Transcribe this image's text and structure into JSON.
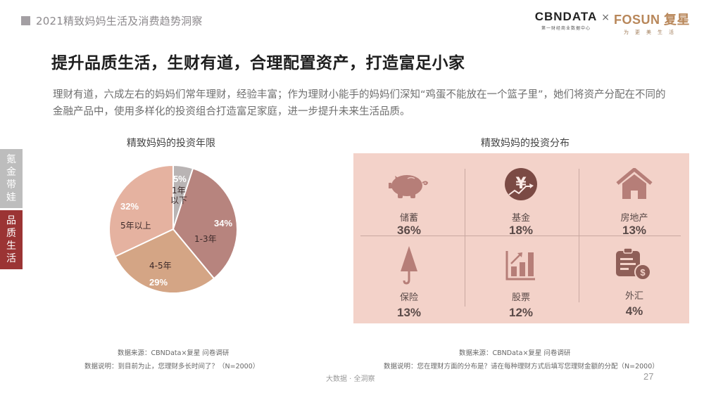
{
  "header": {
    "report_title": "2021精致妈妈生活及消费趋势洞察",
    "logo_cbn": "CBNDATA",
    "logo_cbn_sub": "第一财经商业数据中心",
    "logo_times": "×",
    "logo_fosun": "FOSUN 复星",
    "logo_fosun_sub": "为更美生活"
  },
  "side_tabs": [
    {
      "label": "氪金带娃",
      "active": false
    },
    {
      "label": "品质生活",
      "active": true
    }
  ],
  "main_title": "提升品质生活，生财有道，合理配置资产，打造富足小家",
  "intro_text": "理财有道，六成左右的妈妈们常年理财，经验丰富；作为理财小能手的妈妈们深知“鸡蛋不能放在一个篮子里”，她们将资产分配在不同的金融产品中，使用多样化的投资组合打造富足家庭，进一步提升未来生活品质。",
  "pie_chart": {
    "title": "精致妈妈的投资年限",
    "slices": [
      {
        "label": "1年以下",
        "label_line1": "1年",
        "label_line2": "以下",
        "pct": "5%",
        "color": "#b9b4b4"
      },
      {
        "label": "1-3年",
        "pct": "34%",
        "color": "#b7847e"
      },
      {
        "label": "4-5年",
        "pct": "29%",
        "color": "#d4a585"
      },
      {
        "label": "5年以上",
        "pct": "32%",
        "color": "#e5b2a0"
      }
    ],
    "source": "数据来源：CBNData×复星 问卷调研",
    "note": "数据说明：到目前为止，您理财多长时间了？（N=2000）"
  },
  "grid_chart": {
    "title": "精致妈妈的投资分布",
    "items": [
      {
        "label": "储蓄",
        "pct": "36%",
        "icon": "piggy-bank-icon"
      },
      {
        "label": "基金",
        "pct": "18%",
        "icon": "yuan-growth-icon"
      },
      {
        "label": "房地产",
        "pct": "13%",
        "icon": "house-icon"
      },
      {
        "label": "保险",
        "pct": "13%",
        "icon": "umbrella-icon"
      },
      {
        "label": "股票",
        "pct": "12%",
        "icon": "bar-chart-icon"
      },
      {
        "label": "外汇",
        "pct": "4%",
        "icon": "clipboard-dollar-icon"
      }
    ],
    "bg_color": "#f3d2c9",
    "icon_color": "#b67e78",
    "source": "数据来源：CBNData×复星 问卷调研",
    "note": "数据说明：您在理财方面的分布是？请在每种理财方式后填写您理财金额的分配（N=2000）"
  },
  "footer": {
    "brand": "大数据 · 全洞察",
    "page": "27"
  },
  "chart_data": [
    {
      "type": "pie",
      "title": "精致妈妈的投资年限",
      "categories": [
        "1年以下",
        "1-3年",
        "4-5年",
        "5年以上"
      ],
      "values": [
        5,
        34,
        29,
        32
      ],
      "unit": "%"
    },
    {
      "type": "table",
      "title": "精致妈妈的投资分布",
      "categories": [
        "储蓄",
        "基金",
        "房地产",
        "保险",
        "股票",
        "外汇"
      ],
      "values": [
        36,
        18,
        13,
        13,
        12,
        4
      ],
      "unit": "%"
    }
  ]
}
